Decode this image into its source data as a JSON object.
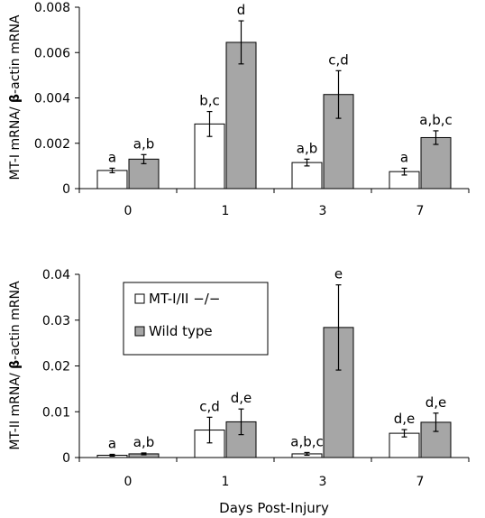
{
  "chart_data": [
    {
      "type": "bar",
      "ylabel_prefix": "MT-I mRNA/ ",
      "ylabel_beta": "β",
      "ylabel_suffix": "-actin mRNA",
      "xlabel": "",
      "categories": [
        "0",
        "1",
        "3",
        "7"
      ],
      "ylim": [
        0,
        0.008
      ],
      "yticks": [
        0,
        0.002,
        0.004,
        0.006,
        0.008
      ],
      "ytick_labels": [
        "0",
        "0.002",
        "0.004",
        "0.006",
        "0.008"
      ],
      "series": [
        {
          "name": "MT-I/II −/−",
          "color": "#ffffff",
          "values": [
            0.0008,
            0.00285,
            0.00115,
            0.00075
          ],
          "errors": [
            0.0001,
            0.00055,
            0.00015,
            0.00015
          ],
          "sig_labels": [
            "a",
            "b,c",
            "a,b",
            "a"
          ]
        },
        {
          "name": "Wild type",
          "color": "#a6a6a6",
          "values": [
            0.0013,
            0.00645,
            0.00415,
            0.00225
          ],
          "errors": [
            0.0002,
            0.00095,
            0.00105,
            0.0003
          ],
          "sig_labels": [
            "a,b",
            "d",
            "c,d",
            "a,b,c"
          ]
        }
      ]
    },
    {
      "type": "bar",
      "ylabel_prefix": "MT-II mRNA/ ",
      "ylabel_beta": "β",
      "ylabel_suffix": "-actin mRNA",
      "xlabel": "Days Post-Injury",
      "categories": [
        "0",
        "1",
        "3",
        "7"
      ],
      "ylim": [
        0,
        0.04
      ],
      "yticks": [
        0,
        0.01,
        0.02,
        0.03,
        0.04
      ],
      "ytick_labels": [
        "0",
        "0.01",
        "0.02",
        "0.03",
        "0.04"
      ],
      "legend": {
        "placement": "top-left",
        "entries": [
          "MT-I/II  −/−",
          "Wild type"
        ]
      },
      "series": [
        {
          "name": "MT-I/II −/−",
          "color": "#ffffff",
          "values": [
            0.0005,
            0.006,
            0.0008,
            0.0053
          ],
          "errors": [
            0.0002,
            0.0028,
            0.0003,
            0.0008
          ],
          "sig_labels": [
            "a",
            "c,d",
            "a,b,c",
            "d,e"
          ]
        },
        {
          "name": "Wild type",
          "color": "#a6a6a6",
          "values": [
            0.0008,
            0.0078,
            0.0284,
            0.0077
          ],
          "errors": [
            0.0002,
            0.0028,
            0.0093,
            0.002
          ],
          "sig_labels": [
            "a,b",
            "d,e",
            "e",
            "d,e"
          ]
        }
      ]
    }
  ]
}
